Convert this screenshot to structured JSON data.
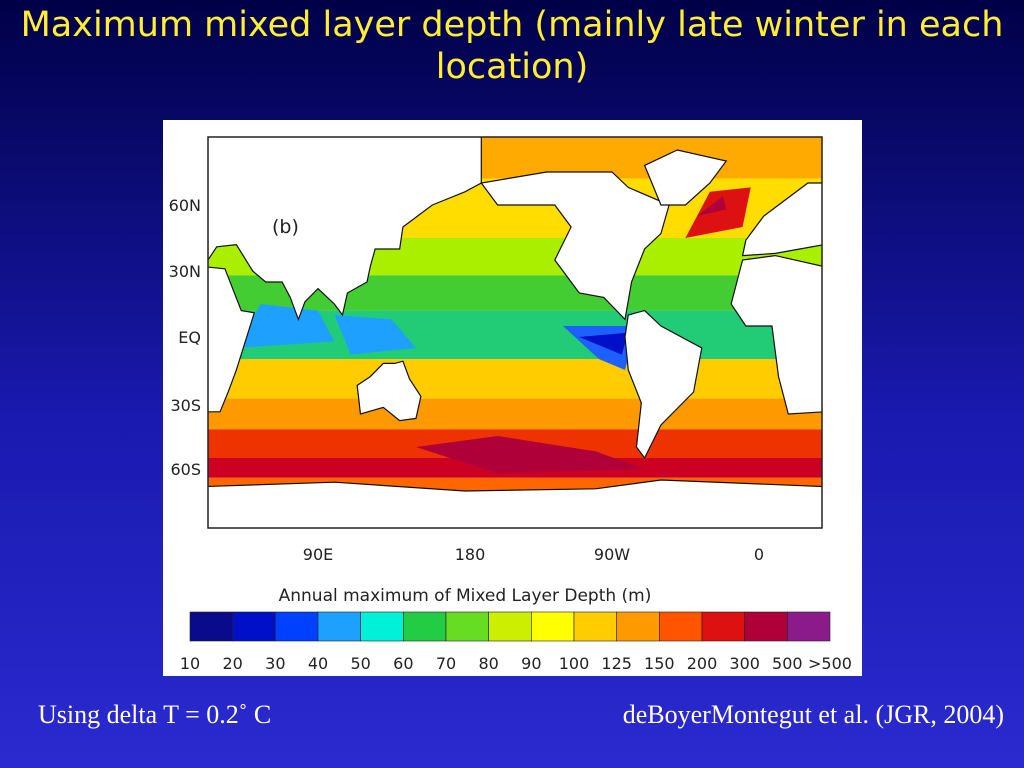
{
  "header": {
    "title": "Maximum mixed layer depth (mainly late winter in each location)"
  },
  "figure": {
    "panel_label": "(b)",
    "lat_labels": [
      "60N",
      "30N",
      "EQ",
      "30S",
      "60S"
    ],
    "lon_labels": [
      "90E",
      "180",
      "90W",
      "0"
    ],
    "colorbar": {
      "title": "Annual maximum of Mixed Layer Depth (m)",
      "labels": [
        "10",
        "20",
        "30",
        "40",
        "50",
        "60",
        "70",
        "80",
        "90",
        "100",
        "125",
        "150",
        "200",
        "300",
        "500",
        ">500"
      ],
      "colors": [
        "#0a0a8c",
        "#0010c8",
        "#0040ff",
        "#1ea0ff",
        "#00f0d8",
        "#22cc44",
        "#66dd22",
        "#ccee00",
        "#ffff00",
        "#ffcc00",
        "#ff9900",
        "#ff5500",
        "#dd1111",
        "#b0003a",
        "#8b1a8b"
      ]
    }
  },
  "footer": {
    "left": "Using delta T = 0.2˚  C",
    "right": "deBoyerMontegut et al. (JGR, 2004)"
  }
}
